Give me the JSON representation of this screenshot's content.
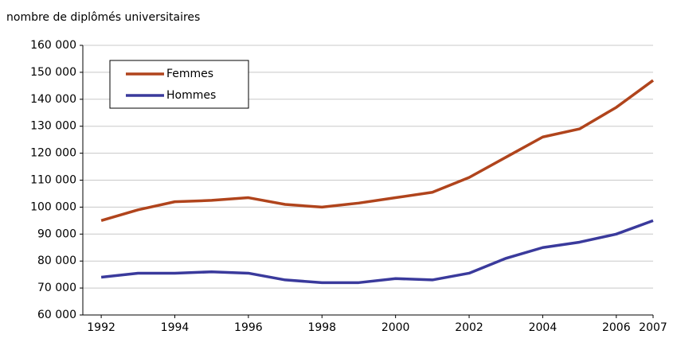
{
  "chart_data": {
    "type": "line",
    "ylabel": "nombre de diplômés universitaires",
    "x": [
      1992,
      1993,
      1994,
      1995,
      1996,
      1997,
      1998,
      1999,
      2000,
      2001,
      2002,
      2003,
      2004,
      2005,
      2006,
      2007
    ],
    "series": [
      {
        "name": "Femmes",
        "color": "#b0441c",
        "values": [
          95000,
          99000,
          102000,
          102500,
          103500,
          101000,
          100000,
          101500,
          103500,
          105500,
          111000,
          118500,
          126000,
          129000,
          137000,
          147000
        ]
      },
      {
        "name": "Hommes",
        "color": "#3a3a9c",
        "values": [
          74000,
          75500,
          75500,
          76000,
          75500,
          73000,
          72000,
          72000,
          73500,
          73000,
          75500,
          81000,
          85000,
          87000,
          90000,
          95000
        ]
      }
    ],
    "xlim": [
      1991.5,
      2007
    ],
    "xticks": [
      1992,
      1994,
      1996,
      1998,
      2000,
      2002,
      2004,
      2006,
      2007
    ],
    "ylim": [
      60000,
      160000
    ],
    "yticks": [
      {
        "value": 60000,
        "label": "60 000"
      },
      {
        "value": 70000,
        "label": "70 000"
      },
      {
        "value": 80000,
        "label": "80 000"
      },
      {
        "value": 90000,
        "label": "90 000"
      },
      {
        "value": 100000,
        "label": "100 000"
      },
      {
        "value": 110000,
        "label": "110 000"
      },
      {
        "value": 120000,
        "label": "120 000"
      },
      {
        "value": 130000,
        "label": "130 000"
      },
      {
        "value": 140000,
        "label": "140 000"
      },
      {
        "value": 150000,
        "label": "150 000"
      },
      {
        "value": 160000,
        "label": "160 000"
      }
    ],
    "grid": true,
    "legend": "upper left"
  }
}
